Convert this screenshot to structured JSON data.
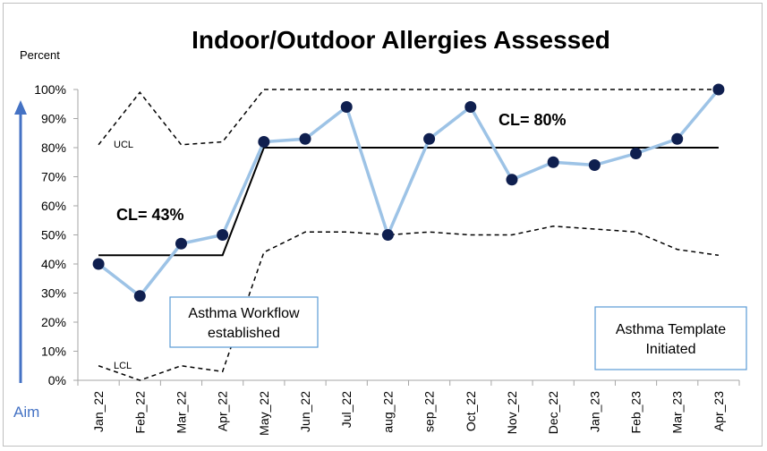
{
  "chart_data": {
    "type": "line",
    "title": "Indoor/Outdoor Allergies Assessed",
    "ylabel": "Percent",
    "xlabel": "",
    "ylim": [
      0,
      100
    ],
    "yticks": [
      "0%",
      "10%",
      "20%",
      "30%",
      "40%",
      "50%",
      "60%",
      "70%",
      "80%",
      "90%",
      "100%"
    ],
    "categories": [
      "Jan_22",
      "Feb_22",
      "Mar_22",
      "Apr_22",
      "May_22",
      "Jun_22",
      "Jul_22",
      "aug_22",
      "sep_22",
      "Oct_22",
      "Nov_22",
      "Dec_22",
      "Jan_23",
      "Feb_23",
      "Mar_23",
      "Apr_23"
    ],
    "series": [
      {
        "values": [
          40,
          29,
          47,
          50,
          82,
          83,
          94,
          50,
          83,
          94,
          69,
          75,
          74,
          78,
          83,
          100
        ]
      }
    ],
    "ucl": [
      81,
      99,
      81,
      82,
      100,
      100,
      100,
      100,
      100,
      100,
      100,
      100,
      100,
      100,
      100,
      100
    ],
    "lcl": [
      5,
      0,
      5,
      3,
      44,
      51,
      51,
      50,
      51,
      50,
      50,
      53,
      52,
      51,
      45,
      43
    ],
    "centerlines": [
      {
        "label": "CL= 43%",
        "value": 43,
        "from": 0,
        "to": 3
      },
      {
        "label": "CL= 80%",
        "value": 80,
        "from": 4,
        "to": 15
      }
    ],
    "ucl_label": "UCL",
    "lcl_label": "LCL",
    "aim_label": "Aim",
    "annotations": [
      {
        "lines": [
          "Asthma Workflow",
          "established"
        ]
      },
      {
        "lines": [
          "Asthma Template",
          "Initiated"
        ]
      }
    ],
    "grid": false,
    "legend": "none",
    "colors": {
      "series_line": "#9dc3e6",
      "marker": "#0f1f4f",
      "aim_arrow": "#4472c4",
      "box_border": "#5b9bd5",
      "axis": "#a6a6a6"
    }
  }
}
